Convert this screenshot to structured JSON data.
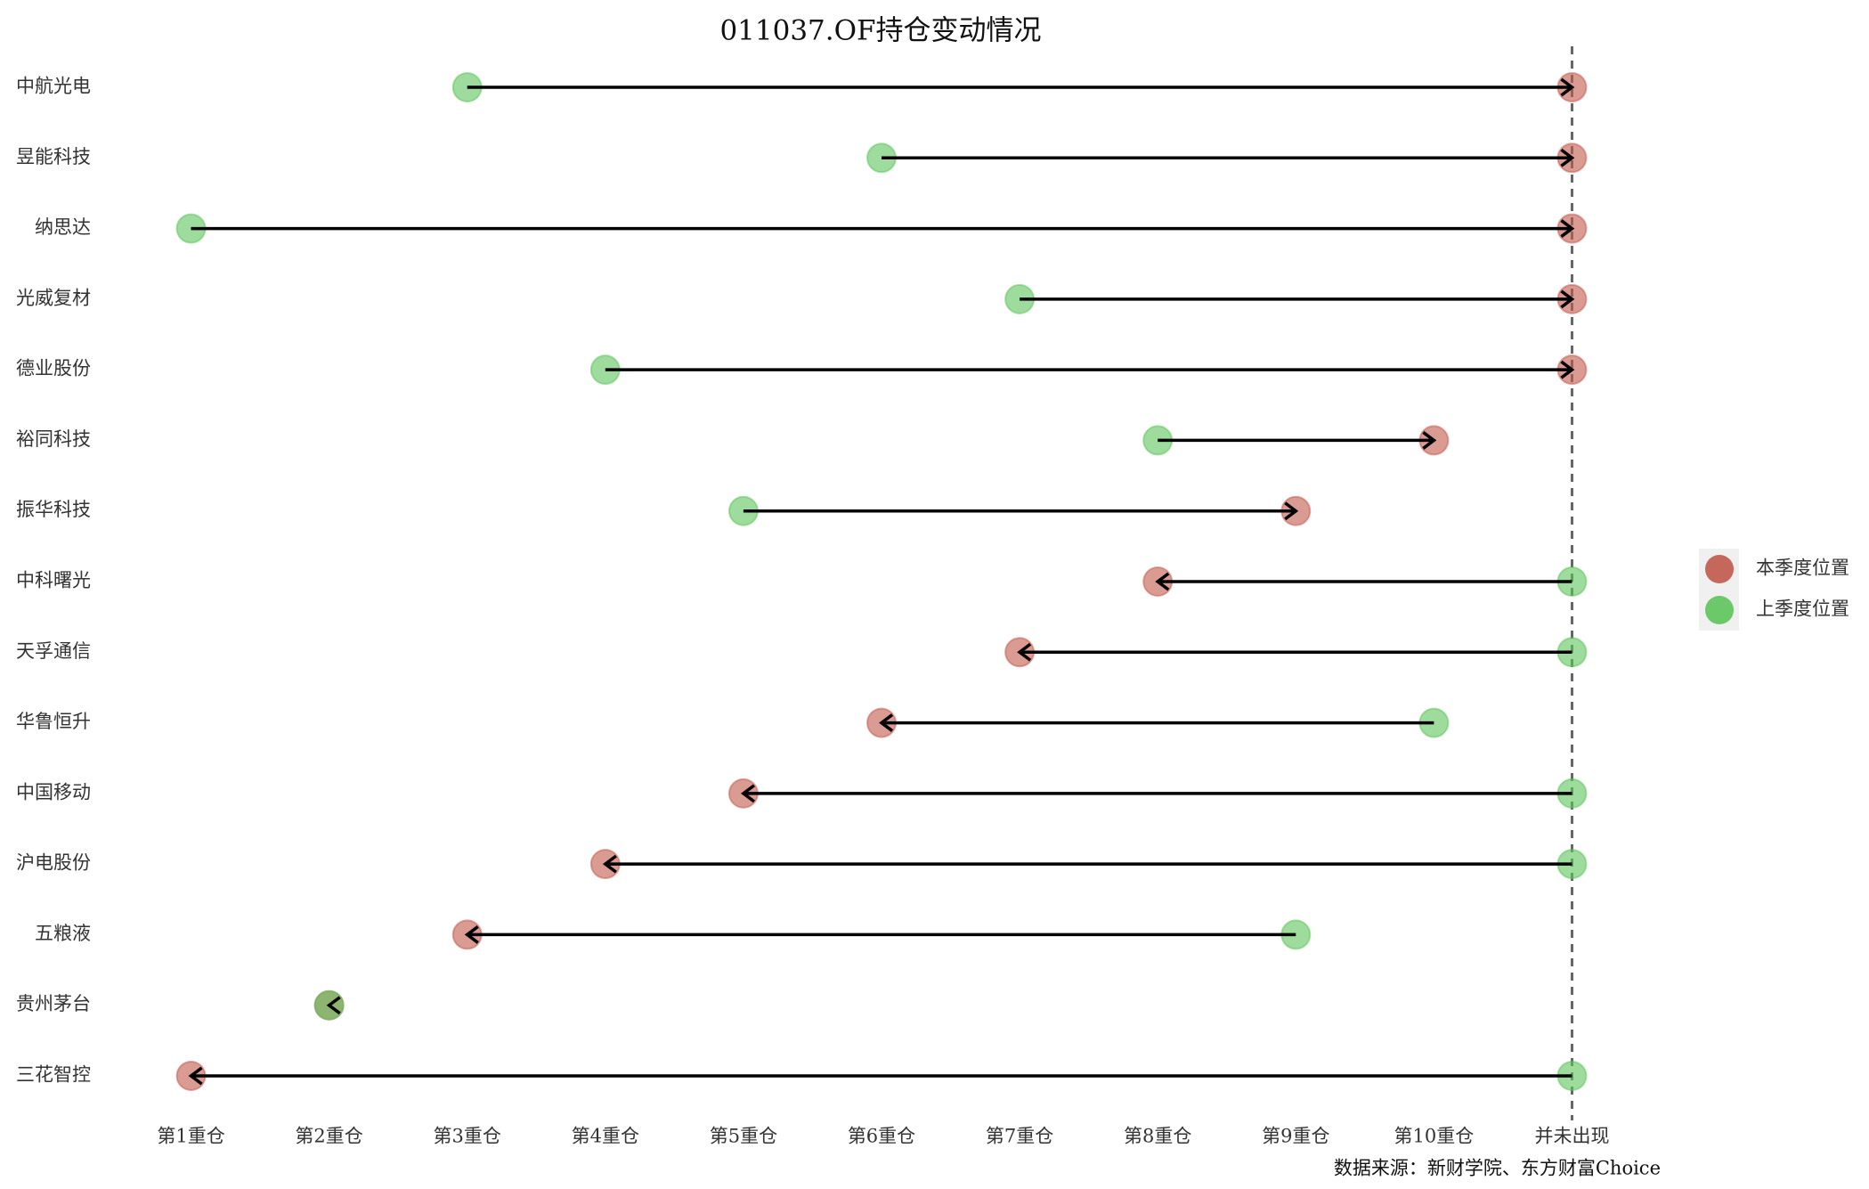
{
  "chart_data": {
    "type": "dumbbell_arrow",
    "title": "011037.OF持仓变动情况",
    "source": "数据来源：新财学院、东方财富Choice",
    "categories": [
      "中航光电",
      "昱能科技",
      "纳思达",
      "光威复材",
      "德业股份",
      "裕同科技",
      "振华科技",
      "中科曙光",
      "天孚通信",
      "华鲁恒升",
      "中国移动",
      "沪电股份",
      "五粮液",
      "贵州茅台",
      "三花智控"
    ],
    "series": [
      {
        "name": "本季度位置",
        "color": "#c1584b",
        "values": [
          11,
          11,
          11,
          11,
          11,
          10,
          9,
          8,
          7,
          6,
          5,
          4,
          3,
          2,
          1
        ]
      },
      {
        "name": "上季度位置",
        "color": "#5cc45a",
        "values": [
          3,
          6,
          1,
          7,
          4,
          8,
          5,
          11,
          11,
          10,
          11,
          11,
          9,
          2,
          11
        ]
      }
    ],
    "xlim": [
      0.7,
      11.3
    ],
    "xticks": [
      {
        "value": 1,
        "label": "第1重仓"
      },
      {
        "value": 2,
        "label": "第2重仓"
      },
      {
        "value": 3,
        "label": "第3重仓"
      },
      {
        "value": 4,
        "label": "第4重仓"
      },
      {
        "value": 5,
        "label": "第5重仓"
      },
      {
        "value": 6,
        "label": "第6重仓"
      },
      {
        "value": 7,
        "label": "第7重仓"
      },
      {
        "value": 8,
        "label": "第8重仓"
      },
      {
        "value": 9,
        "label": "第9重仓"
      },
      {
        "value": 10,
        "label": "第10重仓"
      },
      {
        "value": 11,
        "label": "并未出现"
      }
    ],
    "vline": 11,
    "legend": "right"
  }
}
